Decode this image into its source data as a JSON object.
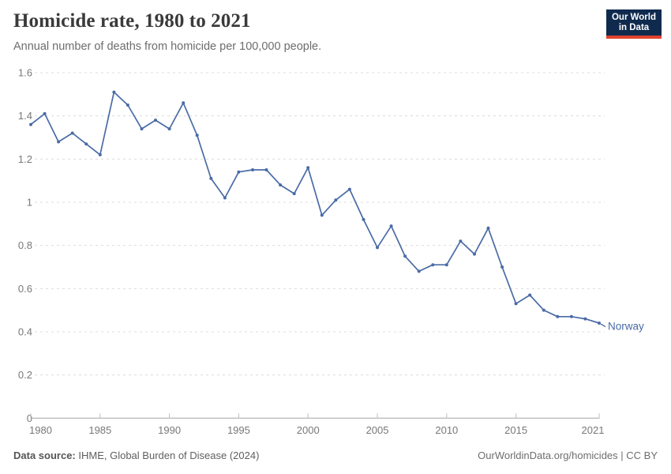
{
  "header": {
    "title": "Homicide rate, 1980 to 2021",
    "subtitle": "Annual number of deaths from homicide per 100,000 people.",
    "logo": {
      "line1": "Our World",
      "line2": "in Data"
    }
  },
  "colors": {
    "accent_line": "#4a6ba6",
    "logo_bg": "#102a4e",
    "logo_accent": "#e0422e",
    "gridline": "#dcdcdc",
    "axis_line": "#a3a3a3",
    "tick_mark": "#bdbdbd",
    "axis_label": "#787878"
  },
  "chart_data": {
    "type": "line",
    "title": "Homicide rate, 1980 to 2021",
    "xlabel": "",
    "ylabel": "",
    "xlim": [
      1980,
      2021
    ],
    "ylim": [
      0,
      1.6
    ],
    "grid": "horizontal-dashed",
    "legend_position": "end-of-line",
    "x_ticks": [
      1980,
      1985,
      1990,
      1995,
      2000,
      2005,
      2010,
      2015,
      2021
    ],
    "x_tick_labels": [
      "1980",
      "1985",
      "1990",
      "1995",
      "2000",
      "2005",
      "2010",
      "2015",
      "2021"
    ],
    "y_ticks": [
      0,
      0.2,
      0.4,
      0.6,
      0.8,
      1,
      1.2,
      1.4,
      1.6
    ],
    "y_tick_labels": [
      "0",
      "0.2",
      "0.4",
      "0.6",
      "0.8",
      "1",
      "1.2",
      "1.4",
      "1.6"
    ],
    "series": [
      {
        "name": "Norway",
        "color": "#4a6ba6",
        "x": [
          1980,
          1981,
          1982,
          1983,
          1984,
          1985,
          1986,
          1987,
          1988,
          1989,
          1990,
          1991,
          1992,
          1993,
          1994,
          1995,
          1996,
          1997,
          1998,
          1999,
          2000,
          2001,
          2002,
          2003,
          2004,
          2005,
          2006,
          2007,
          2008,
          2009,
          2010,
          2011,
          2012,
          2013,
          2014,
          2015,
          2016,
          2017,
          2018,
          2019,
          2020,
          2021
        ],
        "values": [
          1.36,
          1.41,
          1.28,
          1.32,
          1.27,
          1.22,
          1.51,
          1.45,
          1.34,
          1.38,
          1.34,
          1.46,
          1.31,
          1.11,
          1.02,
          1.14,
          1.15,
          1.15,
          1.08,
          1.04,
          1.16,
          0.94,
          1.01,
          1.06,
          0.92,
          0.79,
          0.89,
          0.75,
          0.68,
          0.71,
          0.71,
          0.82,
          0.76,
          0.88,
          0.7,
          0.53,
          0.57,
          0.5,
          0.47,
          0.47,
          0.46,
          0.44
        ]
      }
    ]
  },
  "footer": {
    "source_label": "Data source:",
    "source_value": "IHME, Global Burden of Disease (2024)",
    "attribution": "OurWorldinData.org/homicides | CC BY"
  }
}
